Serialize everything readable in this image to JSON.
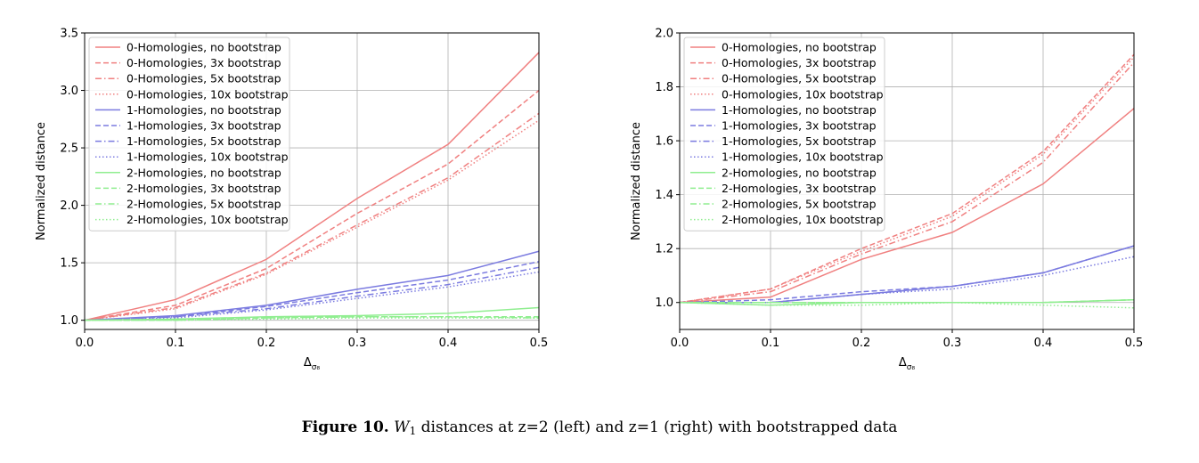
{
  "chart_data": [
    {
      "type": "line",
      "xlabel": "Δ",
      "xlabel_sub": "σ₈",
      "ylabel": "Normalized distance",
      "xlim": [
        0.0,
        0.5
      ],
      "ylim": [
        0.92,
        3.5
      ],
      "xticks": [
        "0.0",
        "0.1",
        "0.2",
        "0.3",
        "0.4",
        "0.5"
      ],
      "yticks": [
        "1.0",
        "1.5",
        "2.0",
        "2.5",
        "3.0",
        "3.5"
      ],
      "ytick_values": [
        1.0,
        1.5,
        2.0,
        2.5,
        3.0,
        3.5
      ],
      "grid": true,
      "legend_position": "top-left",
      "x": [
        0.0,
        0.1,
        0.2,
        0.3,
        0.4,
        0.5
      ],
      "series": [
        {
          "name": "0-Homologies, no bootstrap",
          "color": "#f08080",
          "style": "solid",
          "values": [
            1.0,
            1.18,
            1.53,
            2.06,
            2.53,
            3.33
          ]
        },
        {
          "name": "0-Homologies, 3x bootstrap",
          "color": "#f08080",
          "style": "dashed",
          "values": [
            1.0,
            1.13,
            1.45,
            1.93,
            2.36,
            3.0
          ]
        },
        {
          "name": "0-Homologies, 5x bootstrap",
          "color": "#f08080",
          "style": "dashdot",
          "values": [
            1.0,
            1.11,
            1.41,
            1.83,
            2.24,
            2.8
          ]
        },
        {
          "name": "0-Homologies, 10x bootstrap",
          "color": "#f08080",
          "style": "dotted",
          "values": [
            1.0,
            1.1,
            1.4,
            1.81,
            2.22,
            2.74
          ]
        },
        {
          "name": "1-Homologies, no bootstrap",
          "color": "#7b7be0",
          "style": "solid",
          "values": [
            1.0,
            1.04,
            1.13,
            1.27,
            1.39,
            1.6
          ]
        },
        {
          "name": "1-Homologies, 3x bootstrap",
          "color": "#7b7be0",
          "style": "dashed",
          "values": [
            1.0,
            1.03,
            1.12,
            1.24,
            1.35,
            1.51
          ]
        },
        {
          "name": "1-Homologies, 5x bootstrap",
          "color": "#7b7be0",
          "style": "dashdot",
          "values": [
            1.0,
            1.03,
            1.1,
            1.21,
            1.31,
            1.46
          ]
        },
        {
          "name": "1-Homologies, 10x bootstrap",
          "color": "#7b7be0",
          "style": "dotted",
          "values": [
            1.0,
            1.02,
            1.09,
            1.19,
            1.29,
            1.42
          ]
        },
        {
          "name": "2-Homologies, no bootstrap",
          "color": "#90ee90",
          "style": "solid",
          "values": [
            1.0,
            1.01,
            1.03,
            1.04,
            1.06,
            1.11
          ]
        },
        {
          "name": "2-Homologies, 3x bootstrap",
          "color": "#90ee90",
          "style": "dashed",
          "values": [
            1.0,
            1.0,
            1.02,
            1.03,
            1.03,
            1.03
          ]
        },
        {
          "name": "2-Homologies, 5x bootstrap",
          "color": "#90ee90",
          "style": "dashdot",
          "values": [
            1.0,
            1.0,
            1.02,
            1.03,
            1.03,
            1.02
          ]
        },
        {
          "name": "2-Homologies, 10x bootstrap",
          "color": "#90ee90",
          "style": "dotted",
          "values": [
            1.0,
            1.0,
            1.01,
            1.02,
            1.02,
            1.02
          ]
        }
      ]
    },
    {
      "type": "line",
      "xlabel": "Δ",
      "xlabel_sub": "σ₈",
      "ylabel": "Normalized distance",
      "xlim": [
        0.0,
        0.5
      ],
      "ylim": [
        0.9,
        2.0
      ],
      "xticks": [
        "0.0",
        "0.1",
        "0.2",
        "0.3",
        "0.4",
        "0.5"
      ],
      "yticks": [
        "1.0",
        "1.2",
        "1.4",
        "1.6",
        "1.8",
        "2.0"
      ],
      "ytick_values": [
        1.0,
        1.2,
        1.4,
        1.6,
        1.8,
        2.0
      ],
      "grid": true,
      "legend_position": "top-left",
      "x": [
        0.0,
        0.1,
        0.2,
        0.3,
        0.4,
        0.5
      ],
      "series": [
        {
          "name": "0-Homologies, no bootstrap",
          "color": "#f08080",
          "style": "solid",
          "values": [
            1.0,
            1.02,
            1.16,
            1.26,
            1.44,
            1.72
          ]
        },
        {
          "name": "0-Homologies, 3x bootstrap",
          "color": "#f08080",
          "style": "dashed",
          "values": [
            1.0,
            1.05,
            1.2,
            1.33,
            1.56,
            1.92
          ]
        },
        {
          "name": "0-Homologies, 5x bootstrap",
          "color": "#f08080",
          "style": "dashdot",
          "values": [
            1.0,
            1.04,
            1.18,
            1.3,
            1.52,
            1.89
          ]
        },
        {
          "name": "0-Homologies, 10x bootstrap",
          "color": "#f08080",
          "style": "dotted",
          "values": [
            1.0,
            1.05,
            1.19,
            1.32,
            1.55,
            1.91
          ]
        },
        {
          "name": "1-Homologies, no bootstrap",
          "color": "#7b7be0",
          "style": "solid",
          "values": [
            1.0,
            1.0,
            1.03,
            1.06,
            1.11,
            1.21
          ]
        },
        {
          "name": "1-Homologies, 3x bootstrap",
          "color": "#7b7be0",
          "style": "dashed",
          "values": [
            1.0,
            1.01,
            1.04,
            1.06,
            1.11,
            1.21
          ]
        },
        {
          "name": "1-Homologies, 5x bootstrap",
          "color": "#7b7be0",
          "style": "dashdot",
          "values": [
            1.0,
            1.0,
            1.03,
            1.06,
            1.11,
            1.21
          ]
        },
        {
          "name": "1-Homologies, 10x bootstrap",
          "color": "#7b7be0",
          "style": "dotted",
          "values": [
            1.0,
            1.0,
            1.03,
            1.05,
            1.1,
            1.17
          ]
        },
        {
          "name": "2-Homologies, no bootstrap",
          "color": "#90ee90",
          "style": "solid",
          "values": [
            1.0,
            0.99,
            1.0,
            1.0,
            1.0,
            1.01
          ]
        },
        {
          "name": "2-Homologies, 3x bootstrap",
          "color": "#90ee90",
          "style": "dashed",
          "values": [
            1.0,
            1.0,
            1.0,
            1.0,
            1.0,
            1.01
          ]
        },
        {
          "name": "2-Homologies, 5x bootstrap",
          "color": "#90ee90",
          "style": "dashdot",
          "values": [
            1.0,
            1.0,
            1.0,
            1.0,
            1.0,
            1.01
          ]
        },
        {
          "name": "2-Homologies, 10x bootstrap",
          "color": "#90ee90",
          "style": "dotted",
          "values": [
            1.0,
            0.99,
            0.99,
            1.0,
            0.99,
            0.98
          ]
        }
      ]
    }
  ],
  "caption": {
    "figure_label": "Figure 10.",
    "symbol": "W",
    "subscript": "1",
    "text": " distances at z=2 (left) and z=1 (right) with bootstrapped data"
  }
}
